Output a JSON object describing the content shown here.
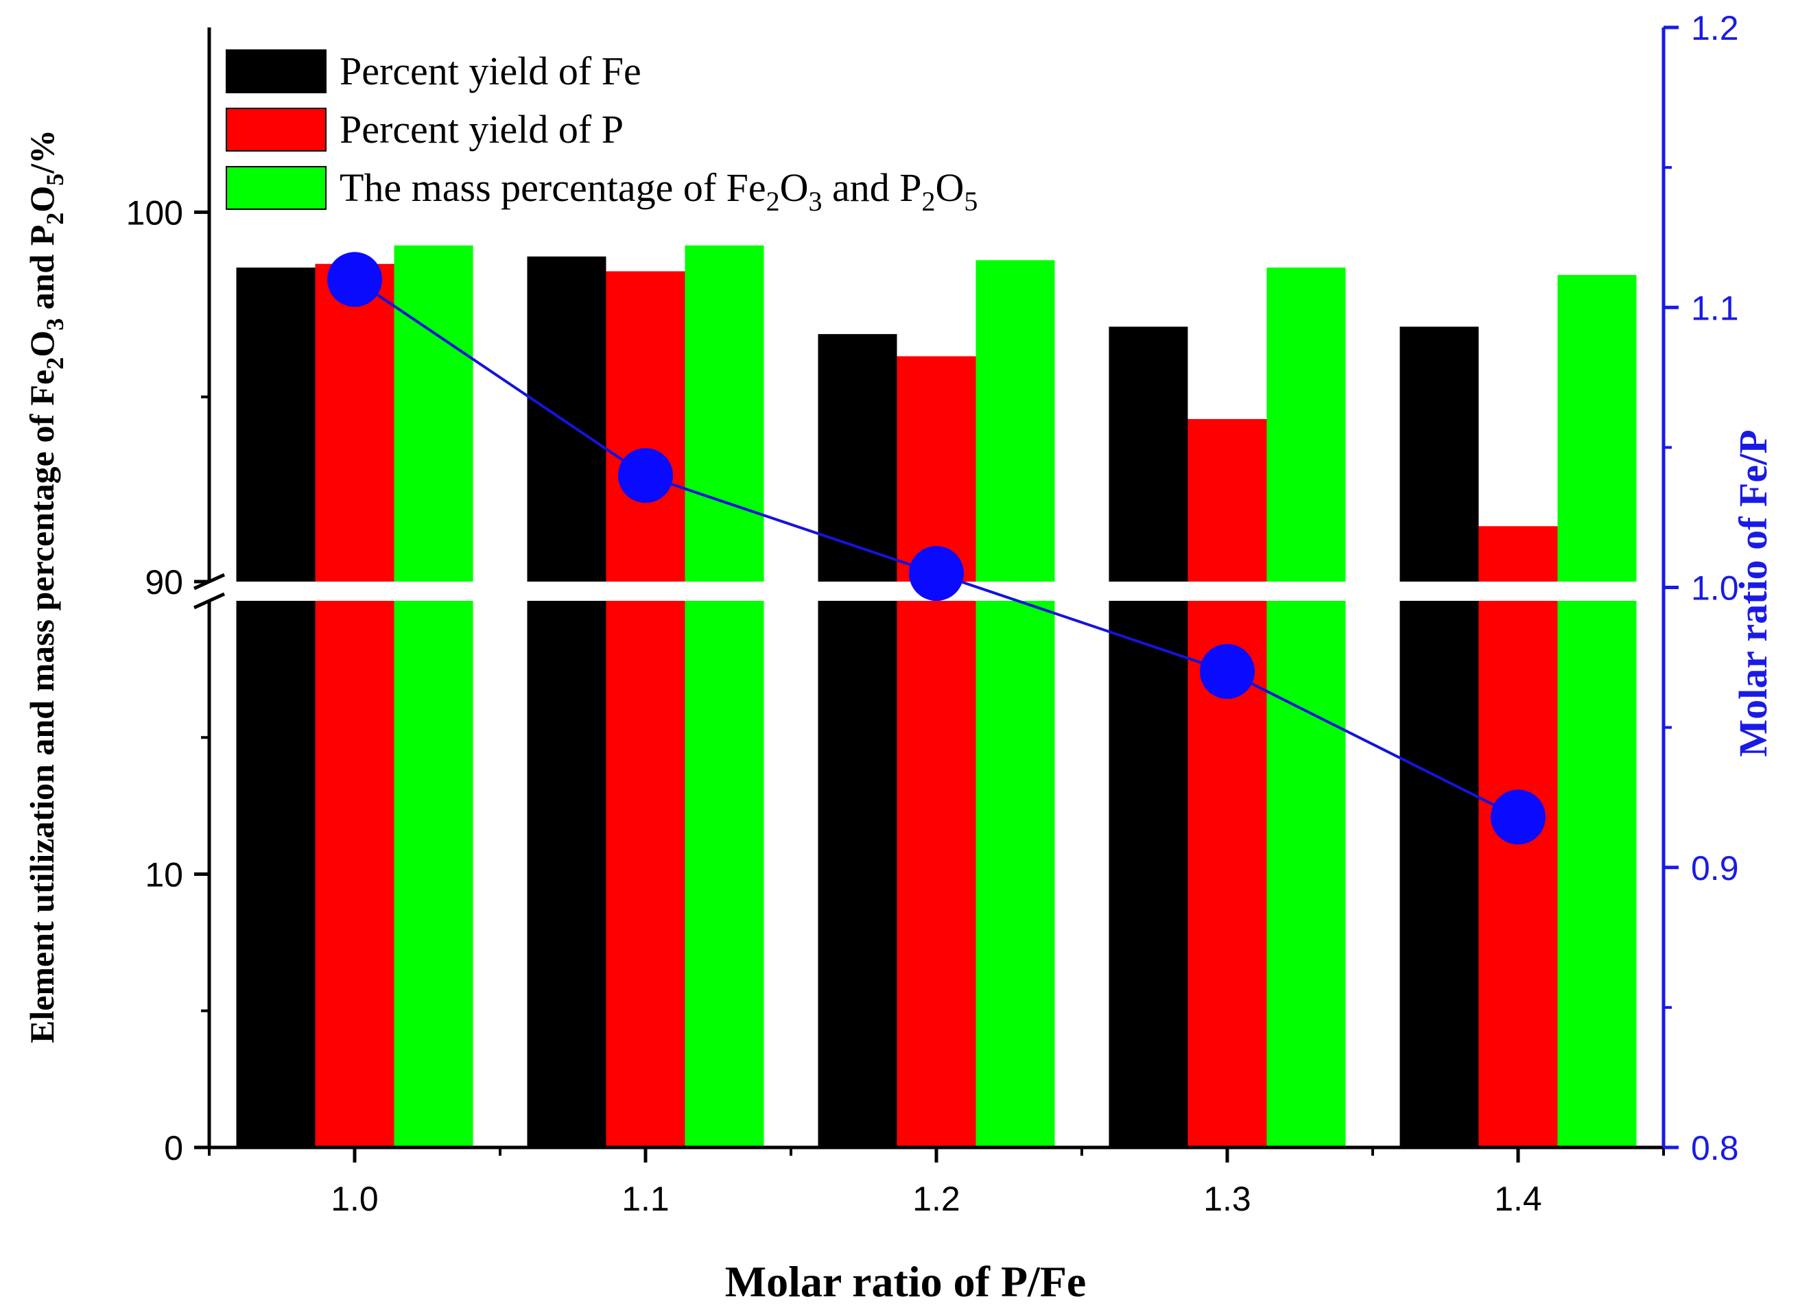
{
  "chart_data": {
    "type": "bar",
    "xlabel": "Molar ratio of P/Fe",
    "ylabel": {
      "prefix": "Element utilization and mass percentage of Fe",
      "sub1": "2",
      "mid1": "O",
      "sub2": "3",
      "mid2": " and P",
      "sub3": "2",
      "mid3": "O",
      "sub4": "5",
      "suffix": "/%"
    },
    "y2label": "Molar ratio of Fe/P",
    "categories": [
      "1.0",
      "1.1",
      "1.2",
      "1.3",
      "1.4"
    ],
    "left_axis": {
      "broken": true,
      "lower_segment": [
        0,
        20
      ],
      "upper_segment": [
        90,
        105
      ],
      "tick_labels": [
        "0",
        "10",
        "90",
        "100"
      ]
    },
    "right_axis": {
      "range": [
        0.8,
        1.2
      ],
      "tick_labels": [
        "0.8",
        "0.9",
        "1.0",
        "1.1",
        "1.2"
      ]
    },
    "series": [
      {
        "name": "Percent yield of Fe",
        "legend_label": "Percent yield of Fe",
        "color": "#000000",
        "values": [
          98.5,
          98.8,
          96.7,
          96.9,
          96.9
        ]
      },
      {
        "name": "Percent yield of P",
        "legend_label": "Percent yield of P",
        "color": "#ff0000",
        "values": [
          98.6,
          98.4,
          96.1,
          94.4,
          91.5
        ]
      },
      {
        "name": "The mass percentage of Fe2O3 and P2O5",
        "legend_label_parts": [
          "The mass percentage of Fe",
          "2",
          "O",
          "3",
          " and P",
          "2",
          "O",
          "5"
        ],
        "color": "#00ff00",
        "values": [
          99.1,
          99.1,
          98.7,
          98.5,
          98.3
        ]
      }
    ],
    "line_series": {
      "name": "Molar ratio of Fe/P",
      "color": "#0000ff",
      "axis": "right",
      "values": [
        1.11,
        1.04,
        1.005,
        0.97,
        0.918
      ]
    },
    "colors": {
      "right_axis": "#1a1ae6",
      "line": "#1414d9",
      "marker": "#0a0aff"
    }
  }
}
